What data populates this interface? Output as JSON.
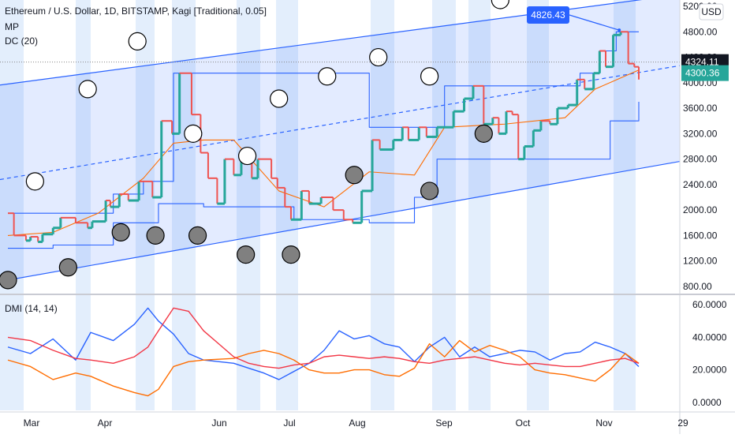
{
  "chart_data": {
    "type": "line",
    "title": "Ethereum / U.S. Dollar, 1D, BITSTAMP, Kagi [Traditional, 0.05]",
    "indicators": [
      "MP",
      "DC (20)"
    ],
    "price_axis": {
      "currency": "USD",
      "ticks": [
        "5200.00",
        "4800.00",
        "4400.00",
        "4000.00",
        "3600.00",
        "3200.00",
        "2800.00",
        "2400.00",
        "2000.00",
        "1600.00",
        "1200.00",
        "800.00"
      ],
      "ylim": [
        700,
        5250
      ]
    },
    "x_axis": {
      "ticks": [
        "Mar",
        "Apr",
        "Jun",
        "Jul",
        "Aug",
        "Sep",
        "Oct",
        "Nov",
        "29"
      ]
    },
    "badges": {
      "top_label": "4826.43",
      "current_price": "4324.11",
      "current_close": "4300.36"
    },
    "kagi": [
      [
        0,
        1950
      ],
      [
        0.4,
        1600
      ],
      [
        1.2,
        1520
      ],
      [
        1.5,
        1580
      ],
      [
        2.0,
        1500
      ],
      [
        2.3,
        1620
      ],
      [
        3.0,
        1720
      ],
      [
        3.5,
        1880
      ],
      [
        4.5,
        1800
      ],
      [
        5.3,
        1720
      ],
      [
        5.6,
        1820
      ],
      [
        6.5,
        2150
      ],
      [
        6.8,
        2050
      ],
      [
        7.4,
        2250
      ],
      [
        8.0,
        2150
      ],
      [
        8.7,
        2450
      ],
      [
        9.6,
        2200
      ],
      [
        10.2,
        3400
      ],
      [
        10.9,
        3200
      ],
      [
        11.4,
        4150
      ],
      [
        12.2,
        3500
      ],
      [
        12.8,
        2900
      ],
      [
        13.3,
        2500
      ],
      [
        13.9,
        2100
      ],
      [
        14.4,
        2800
      ],
      [
        15.0,
        2550
      ],
      [
        15.5,
        2800
      ],
      [
        16.2,
        2500
      ],
      [
        16.6,
        2800
      ],
      [
        17.5,
        2500
      ],
      [
        17.9,
        2350
      ],
      [
        18.4,
        2050
      ],
      [
        18.8,
        1850
      ],
      [
        19.5,
        2300
      ],
      [
        20.0,
        2100
      ],
      [
        20.8,
        2200
      ],
      [
        21.6,
        2000
      ],
      [
        22.3,
        1850
      ],
      [
        22.9,
        1800
      ],
      [
        23.5,
        2300
      ],
      [
        24.2,
        3100
      ],
      [
        24.7,
        2950
      ],
      [
        25.6,
        3100
      ],
      [
        26.2,
        3300
      ],
      [
        26.6,
        3100
      ],
      [
        27.3,
        3300
      ],
      [
        27.8,
        3150
      ],
      [
        28.5,
        3300
      ],
      [
        29.6,
        3550
      ],
      [
        30.3,
        3750
      ],
      [
        30.9,
        3950
      ],
      [
        31.6,
        3350
      ],
      [
        32.2,
        3450
      ],
      [
        32.6,
        3200
      ],
      [
        33.1,
        3550
      ],
      [
        33.5,
        3500
      ],
      [
        33.9,
        2800
      ],
      [
        34.3,
        3000
      ],
      [
        34.9,
        3250
      ],
      [
        35.4,
        3400
      ],
      [
        36.0,
        3350
      ],
      [
        36.5,
        3600
      ],
      [
        37.2,
        3650
      ],
      [
        37.8,
        4050
      ],
      [
        38.3,
        3900
      ],
      [
        38.9,
        4150
      ],
      [
        39.3,
        4500
      ],
      [
        39.7,
        4250
      ],
      [
        40.2,
        4750
      ],
      [
        40.7,
        4800
      ],
      [
        41.2,
        4300
      ],
      [
        41.6,
        4250
      ],
      [
        41.9,
        4050
      ]
    ],
    "mp": {
      "black_circles": [
        [
          0,
          900
        ],
        [
          4,
          1100
        ],
        [
          7.5,
          1650
        ],
        [
          9.8,
          1600
        ],
        [
          12.6,
          1600
        ],
        [
          15.8,
          1300
        ],
        [
          18.8,
          1300
        ],
        [
          23.0,
          2550
        ],
        [
          28.0,
          2300
        ],
        [
          31.6,
          3200
        ]
      ],
      "white_circles": [
        [
          1.8,
          2450
        ],
        [
          5.3,
          3900
        ],
        [
          8.6,
          4650
        ],
        [
          12.3,
          3200
        ],
        [
          15.9,
          2850
        ],
        [
          18.0,
          3750
        ],
        [
          21.2,
          4100
        ],
        [
          24.6,
          4400
        ],
        [
          28.0,
          4100
        ],
        [
          32.7,
          5300
        ]
      ]
    },
    "donchian": {
      "upper": [
        [
          0,
          1950
        ],
        [
          3,
          1950
        ],
        [
          7,
          2250
        ],
        [
          9,
          2450
        ],
        [
          11,
          4150
        ],
        [
          22,
          4150
        ],
        [
          24,
          3300
        ],
        [
          27,
          3300
        ],
        [
          29,
          3950
        ],
        [
          36,
          3950
        ],
        [
          38,
          4150
        ],
        [
          39.3,
          4500
        ],
        [
          40.4,
          4800
        ],
        [
          41.9,
          4800
        ]
      ],
      "lower": [
        [
          0,
          1400
        ],
        [
          3,
          1450
        ],
        [
          7,
          1800
        ],
        [
          10,
          2100
        ],
        [
          13,
          2050
        ],
        [
          17,
          2050
        ],
        [
          19,
          1850
        ],
        [
          24,
          1800
        ],
        [
          27,
          2200
        ],
        [
          28.5,
          2800
        ],
        [
          30,
          2800
        ],
        [
          33.5,
          2800
        ],
        [
          37,
          2800
        ],
        [
          40,
          3400
        ],
        [
          41.9,
          3700
        ]
      ],
      "mid": [
        [
          0,
          1600
        ],
        [
          3,
          1650
        ],
        [
          6,
          1950
        ],
        [
          9,
          2500
        ],
        [
          11,
          3050
        ],
        [
          13,
          3100
        ],
        [
          15,
          3100
        ],
        [
          18,
          2300
        ],
        [
          21,
          2050
        ],
        [
          24,
          2600
        ],
        [
          27,
          2550
        ],
        [
          29,
          3300
        ],
        [
          33,
          3350
        ],
        [
          37,
          3450
        ],
        [
          39,
          3900
        ],
        [
          41.9,
          4200
        ]
      ]
    },
    "channel": {
      "upper": [
        [
          0,
          3980
        ],
        [
          41.9,
          5300
        ]
      ],
      "mid": [
        [
          0,
          2500
        ],
        [
          41.9,
          4160
        ]
      ],
      "lower": [
        [
          0,
          900
        ],
        [
          41.9,
          2650
        ]
      ]
    },
    "dmi": {
      "title": "DMI (14, 14)",
      "axis_ticks": [
        "60.0000",
        "40.0000",
        "20.0000",
        "0.0000"
      ],
      "ylim": [
        -4,
        64
      ],
      "series": [
        {
          "name": "+DI",
          "color": "#2962ff",
          "values": [
            [
              0,
              34
            ],
            [
              1.5,
              30
            ],
            [
              3,
              39
            ],
            [
              4.5,
              26
            ],
            [
              5.5,
              43
            ],
            [
              7,
              38
            ],
            [
              8.4,
              48
            ],
            [
              9.3,
              58
            ],
            [
              10,
              50
            ],
            [
              11,
              42
            ],
            [
              12,
              30
            ],
            [
              13,
              26
            ],
            [
              15,
              24
            ],
            [
              16,
              21
            ],
            [
              17,
              18
            ],
            [
              18,
              14
            ],
            [
              19,
              19
            ],
            [
              20,
              24
            ],
            [
              21,
              32
            ],
            [
              22,
              44
            ],
            [
              23,
              39
            ],
            [
              24,
              41
            ],
            [
              25,
              36
            ],
            [
              26,
              34
            ],
            [
              27,
              25
            ],
            [
              28,
              34
            ],
            [
              29,
              40
            ],
            [
              30,
              28
            ],
            [
              31,
              34
            ],
            [
              32,
              28
            ],
            [
              33,
              30
            ],
            [
              34,
              32
            ],
            [
              35,
              31
            ],
            [
              36,
              26
            ],
            [
              37,
              30
            ],
            [
              38,
              31
            ],
            [
              39,
              37
            ],
            [
              40,
              34
            ],
            [
              41,
              30
            ],
            [
              41.9,
              22
            ]
          ]
        },
        {
          "name": "-DI",
          "color": "#ff6d00",
          "values": [
            [
              0,
              26
            ],
            [
              1.5,
              22
            ],
            [
              3,
              14
            ],
            [
              4.5,
              18
            ],
            [
              5.5,
              16
            ],
            [
              7,
              10
            ],
            [
              8.4,
              6
            ],
            [
              9.3,
              4
            ],
            [
              10,
              8
            ],
            [
              11,
              22
            ],
            [
              12,
              25
            ],
            [
              13,
              26
            ],
            [
              15,
              27
            ],
            [
              16,
              30
            ],
            [
              17,
              32
            ],
            [
              18,
              30
            ],
            [
              19,
              26
            ],
            [
              20,
              20
            ],
            [
              21,
              18
            ],
            [
              22,
              18
            ],
            [
              23,
              20
            ],
            [
              24,
              20
            ],
            [
              25,
              17
            ],
            [
              26,
              16
            ],
            [
              27,
              21
            ],
            [
              28,
              36
            ],
            [
              29,
              28
            ],
            [
              30,
              38
            ],
            [
              31,
              31
            ],
            [
              32,
              35
            ],
            [
              33,
              32
            ],
            [
              34,
              28
            ],
            [
              35,
              20
            ],
            [
              36,
              18
            ],
            [
              37,
              17
            ],
            [
              38,
              15
            ],
            [
              39,
              13
            ],
            [
              40,
              20
            ],
            [
              41,
              30
            ],
            [
              41.9,
              24
            ]
          ]
        },
        {
          "name": "ADX",
          "color": "#f23645",
          "values": [
            [
              0,
              40
            ],
            [
              1.5,
              38
            ],
            [
              3,
              32
            ],
            [
              4.5,
              27
            ],
            [
              5.5,
              26
            ],
            [
              7,
              24
            ],
            [
              8.4,
              28
            ],
            [
              9.3,
              34
            ],
            [
              10,
              44
            ],
            [
              11,
              58
            ],
            [
              12,
              56
            ],
            [
              13,
              44
            ],
            [
              14,
              36
            ],
            [
              15,
              28
            ],
            [
              16,
              24
            ],
            [
              17,
              22
            ],
            [
              18,
              21
            ],
            [
              19,
              23
            ],
            [
              20,
              24
            ],
            [
              21,
              28
            ],
            [
              22,
              29
            ],
            [
              23,
              28
            ],
            [
              24,
              27
            ],
            [
              25,
              28
            ],
            [
              26,
              27
            ],
            [
              27,
              25
            ],
            [
              28,
              24
            ],
            [
              29,
              26
            ],
            [
              30,
              27
            ],
            [
              31,
              28
            ],
            [
              32,
              26
            ],
            [
              33,
              24
            ],
            [
              34,
              23
            ],
            [
              35,
              24
            ],
            [
              36,
              23
            ],
            [
              37,
              22
            ],
            [
              38,
              22
            ],
            [
              39,
              24
            ],
            [
              40,
              26
            ],
            [
              41,
              27
            ],
            [
              41.9,
              24
            ]
          ]
        }
      ]
    }
  }
}
